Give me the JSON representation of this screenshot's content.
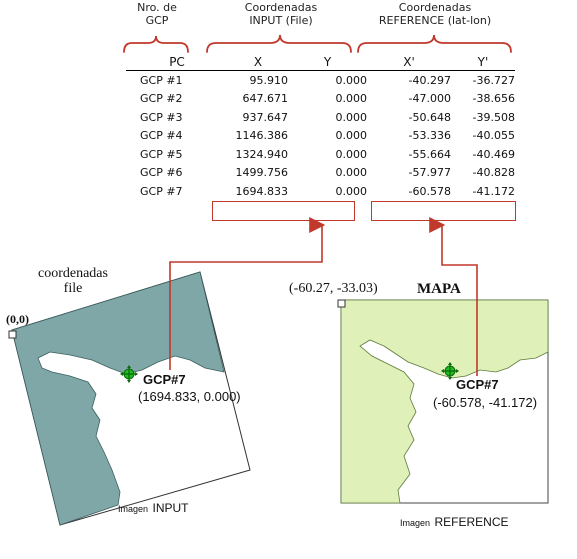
{
  "headers": {
    "gcp_group": "Nro. de\nGCP",
    "input_group": "Coordenadas\nINPUT (File)",
    "reference_group": "Coordenadas\nREFERENCE (lat-lon)"
  },
  "table": {
    "columns": [
      "PC",
      "X",
      "Y",
      "X'",
      "Y'"
    ],
    "rows": [
      {
        "pc": "GCP #1",
        "x": "95.910",
        "y": "0.000",
        "xr": "-40.297",
        "yr": "-36.727"
      },
      {
        "pc": "GCP #2",
        "x": "647.671",
        "y": "0.000",
        "xr": "-47.000",
        "yr": "-38.656"
      },
      {
        "pc": "GCP #3",
        "x": "937.647",
        "y": "0.000",
        "xr": "-50.648",
        "yr": "-39.508"
      },
      {
        "pc": "GCP #4",
        "x": "1146.386",
        "y": "0.000",
        "xr": "-53.336",
        "yr": "-40.055"
      },
      {
        "pc": "GCP #5",
        "x": "1324.940",
        "y": "0.000",
        "xr": "-55.664",
        "yr": "-40.469"
      },
      {
        "pc": "GCP #6",
        "x": "1499.756",
        "y": "0.000",
        "xr": "-57.977",
        "yr": "-40.828"
      },
      {
        "pc": "GCP #7",
        "x": "1694.833",
        "y": "0.000",
        "xr": "-60.578",
        "yr": "-41.172"
      }
    ]
  },
  "input_image": {
    "title": "coordenadas\nfile",
    "origin": "(0,0)",
    "gcp_label": "GCP#7",
    "gcp_coords": "(1694.833, 0.000)",
    "caption_small": "Imagen",
    "caption_big": "INPUT"
  },
  "reference_image": {
    "corner_coords": "(-60.27, -33.03)",
    "title": "MAPA",
    "gcp_label": "GCP#7",
    "gcp_coords": "(-60.578, -41.172)",
    "caption_small": "Imagen",
    "caption_big": "REFERENCE"
  },
  "colors": {
    "accent": "#c0392b",
    "input_land": "#7fa7a7",
    "reference_land": "#dff0b8",
    "marker": "#22bb22"
  }
}
